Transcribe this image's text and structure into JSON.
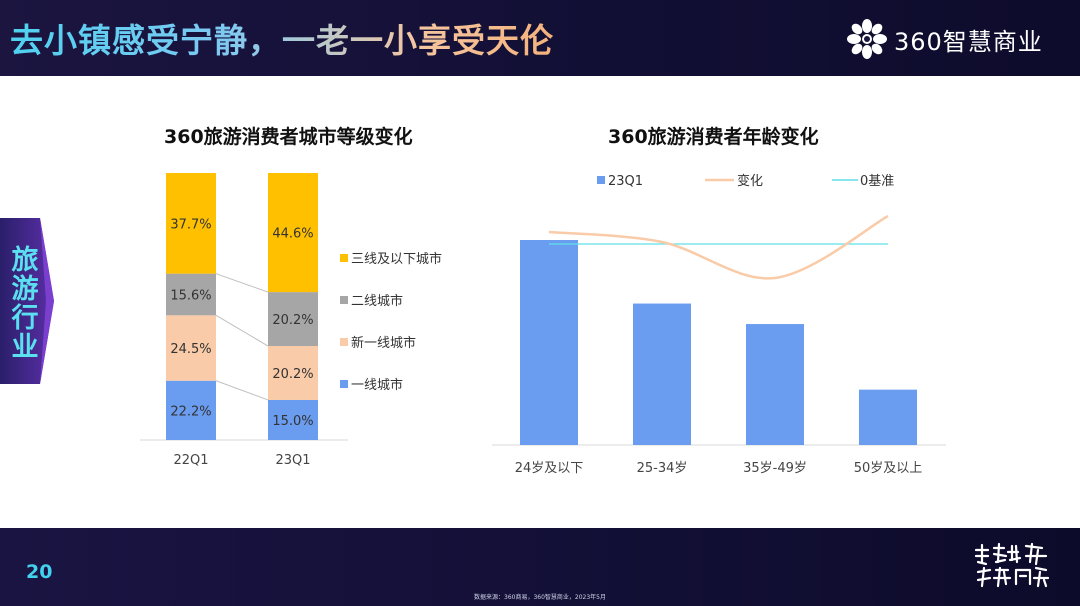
{
  "header": {
    "title": "去小镇感受宁静，一老一小享受天伦",
    "brand": "360智慧商业"
  },
  "side_tab": {
    "label": "旅游行业"
  },
  "chart_data": [
    {
      "type": "bar",
      "stacked": true,
      "title": "360旅游消费者城市等级变化",
      "categories": [
        "22Q1",
        "23Q1"
      ],
      "series": [
        {
          "name": "一线城市",
          "values": [
            22.2,
            15.0
          ],
          "labels": [
            "22.2%",
            "15.0%"
          ],
          "color": "#6a9cf0"
        },
        {
          "name": "新一线城市",
          "values": [
            24.5,
            20.2
          ],
          "labels": [
            "24.5%",
            "20.2%"
          ],
          "color": "#f9cba8"
        },
        {
          "name": "二线城市",
          "values": [
            15.6,
            20.2
          ],
          "labels": [
            "15.6%",
            "20.2%"
          ],
          "color": "#a6a6a6"
        },
        {
          "name": "三线及以下城市",
          "values": [
            37.7,
            44.6
          ],
          "labels": [
            "37.7%",
            "44.6%"
          ],
          "color": "#ffc000"
        }
      ],
      "legend_order": [
        "三线及以下城市",
        "二线城市",
        "新一线城市",
        "一线城市"
      ],
      "legend_position": "right",
      "ylim": [
        0,
        100
      ]
    },
    {
      "type": "bar",
      "title": "360旅游消费者年龄变化",
      "categories": [
        "24岁及以下",
        "25-34岁",
        "35岁-49岁",
        "50岁及以上"
      ],
      "series": [
        {
          "name": "23Q1",
          "type": "bar",
          "values": [
            100,
            69,
            59,
            27
          ],
          "color": "#6a9cf0"
        },
        {
          "name": "变化",
          "type": "line",
          "smooth": true,
          "values": [
            6,
            1,
            -17,
            14
          ],
          "color": "#f9cba8"
        },
        {
          "name": "0基准",
          "type": "line",
          "values": [
            0,
            0,
            0,
            0
          ],
          "color": "#5fe0e8"
        }
      ],
      "legend_position": "top",
      "ylim": [
        0,
        100
      ]
    }
  ],
  "footer": {
    "page_number": "20",
    "source_note": "数据来源：360商易，360智慧商业，2023年5月",
    "calligraphy": "共赴山海 向新而行"
  }
}
